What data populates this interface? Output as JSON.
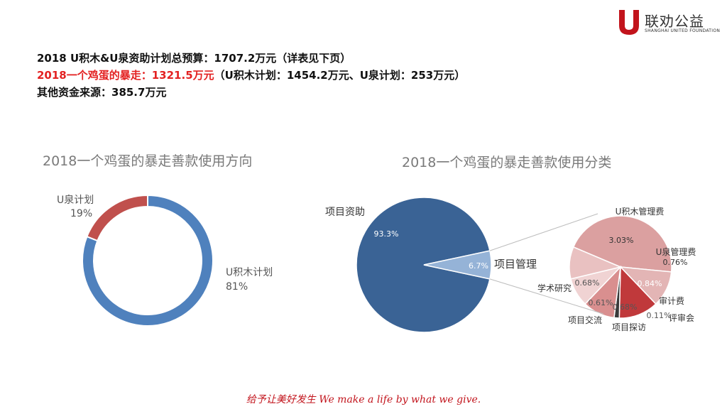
{
  "logo": {
    "name": "联劝公益",
    "subtitle": "SHANGHAI UNITED FOUNDATION"
  },
  "summary": {
    "line1": "2018 U积木&U泉资助计划总预算：1707.2万元（详表见下页）",
    "line2_red": "2018一个鸡蛋的暴走：1321.5万元",
    "line2_black": "（U积木计划：1454.2万元、U泉计划：253万元）",
    "line3": "其他资金来源：385.7万元"
  },
  "colors": {
    "blue": "#4f81bd",
    "red": "#c0504d",
    "darkblue": "#3a6395",
    "lightblue": "#95b3d7",
    "pink": "#dba0a0",
    "darkred": "#c0393b",
    "brand": "#c2141c"
  },
  "chart_data": [
    {
      "type": "pie",
      "title": "2018一个鸡蛋的暴走善款使用方向",
      "labels": [
        "U积木计划",
        "U泉计划"
      ],
      "values": [
        81,
        19
      ],
      "display_values": [
        "81%",
        "19%"
      ]
    },
    {
      "type": "pie",
      "title": "2018一个鸡蛋的暴走善款使用分类",
      "labels": [
        "项目资助",
        "项目管理"
      ],
      "values": [
        93.3,
        6.7
      ],
      "display_values": [
        "93.3%",
        "6.7%"
      ],
      "breakdown": {
        "parent": "项目管理",
        "labels": [
          "U积木管理费",
          "U泉管理费",
          "审计费",
          "评审会",
          "项目探访",
          "项目交流",
          "学术研究"
        ],
        "values": [
          3.03,
          0.76,
          0.84,
          0.11,
          0.68,
          0.61,
          0.68
        ],
        "display_values": [
          "3.03%",
          "0.76%",
          "0.84%",
          "0.11%",
          "0.68%",
          "0.61%",
          "0.68%"
        ]
      }
    }
  ],
  "slogan": "给予让美好发生  We make a life by what we give."
}
